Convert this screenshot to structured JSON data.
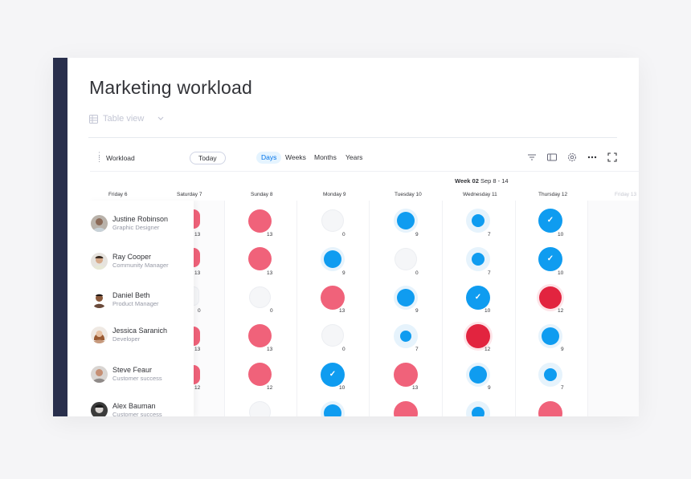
{
  "board": {
    "title": "Marketing workload",
    "view_label": "Table view"
  },
  "toolbar": {
    "workload_label": "Workload",
    "today_label": "Today",
    "scales": [
      "Days",
      "Weeks",
      "Months",
      "Years"
    ],
    "active_scale": "Days",
    "icons": [
      "filter-icon",
      "panel-icon",
      "settings-icon",
      "more-icon",
      "fullscreen-icon"
    ]
  },
  "timeline": {
    "week_number": "Week 02",
    "week_range": "Sep 8 - 14",
    "days": [
      "Friday 6",
      "Saturday 7",
      "Sunday 8",
      "Monday 9",
      "Tuesday 10",
      "Wednesday 11",
      "Thursday 12",
      "Friday 13"
    ]
  },
  "people": [
    {
      "name": "Justine Robinson",
      "role": "Graphic Designer"
    },
    {
      "name": "Ray Cooper",
      "role": "Community Manager"
    },
    {
      "name": "Daniel Beth",
      "role": "Product Manager"
    },
    {
      "name": "Jessica Saranich",
      "role": "Developer"
    },
    {
      "name": "Steve Feaur",
      "role": "Customer success"
    },
    {
      "name": "Alex Bauman",
      "role": "Customer success"
    }
  ],
  "workload": [
    [
      13,
      13,
      0,
      9,
      7,
      10
    ],
    [
      13,
      13,
      9,
      0,
      7,
      10
    ],
    [
      0,
      0,
      13,
      9,
      10,
      12
    ],
    [
      13,
      13,
      0,
      7,
      12,
      9
    ],
    [
      12,
      12,
      10,
      13,
      9,
      7
    ],
    [
      null,
      null,
      null,
      null,
      null,
      null
    ]
  ],
  "colors": {
    "overloaded": "#f0627a",
    "critical": "#e2243f",
    "capacity": "#0f9cf0",
    "accent": "#0073ea",
    "sidebar": "#292f4c"
  }
}
